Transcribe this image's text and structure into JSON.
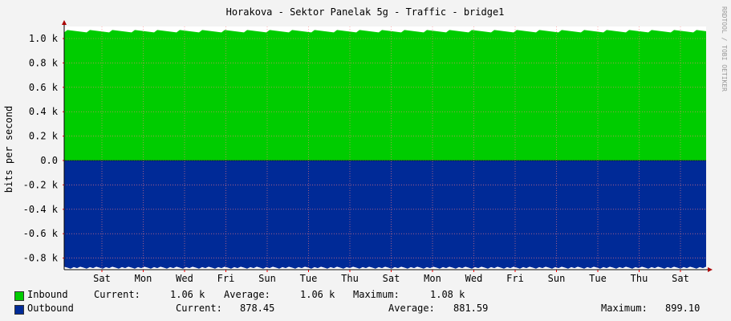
{
  "chart_data": {
    "type": "area",
    "title": "Horakova - Sektor Panelak 5g - Traffic - bridge1",
    "ylabel": "bits per second",
    "watermark": "RRDTOOL / TOBI OETIKER",
    "ylim": [
      -0.88,
      1.08
    ],
    "y_ticks": [
      "1.0 k",
      "0.8 k",
      "0.6 k",
      "0.4 k",
      "0.2 k",
      "0.0",
      "-0.2 k",
      "-0.4 k",
      "-0.6 k",
      "-0.8 k"
    ],
    "y_tick_values": [
      1.0,
      0.8,
      0.6,
      0.4,
      0.2,
      0.0,
      -0.2,
      -0.4,
      -0.6,
      -0.8
    ],
    "x_labels": [
      "Sat",
      "Mon",
      "Wed",
      "Fri",
      "Sun",
      "Tue",
      "Thu",
      "Sat",
      "Mon",
      "Wed",
      "Fri",
      "Sun",
      "Tue",
      "Thu",
      "Sat"
    ],
    "series": [
      {
        "name": "Inbound",
        "color": "#00cc00",
        "value": 1.06
      },
      {
        "name": "Outbound",
        "color": "#002a97",
        "value": -0.8785
      }
    ],
    "grid": true
  },
  "legend": {
    "inbound": {
      "name": "Inbound",
      "current_label": "Current:",
      "current": "1.06 k",
      "average_label": "Average:",
      "average": "1.06 k",
      "maximum_label": "Maximum:",
      "maximum": "1.08 k",
      "color": "#00cc00"
    },
    "outbound": {
      "name": "Outbound",
      "current_label": "Current:",
      "current": "878.45",
      "average_label": "Average:",
      "average": "881.59",
      "maximum_label": "Maximum:",
      "maximum": "899.10",
      "color": "#002a97"
    }
  }
}
